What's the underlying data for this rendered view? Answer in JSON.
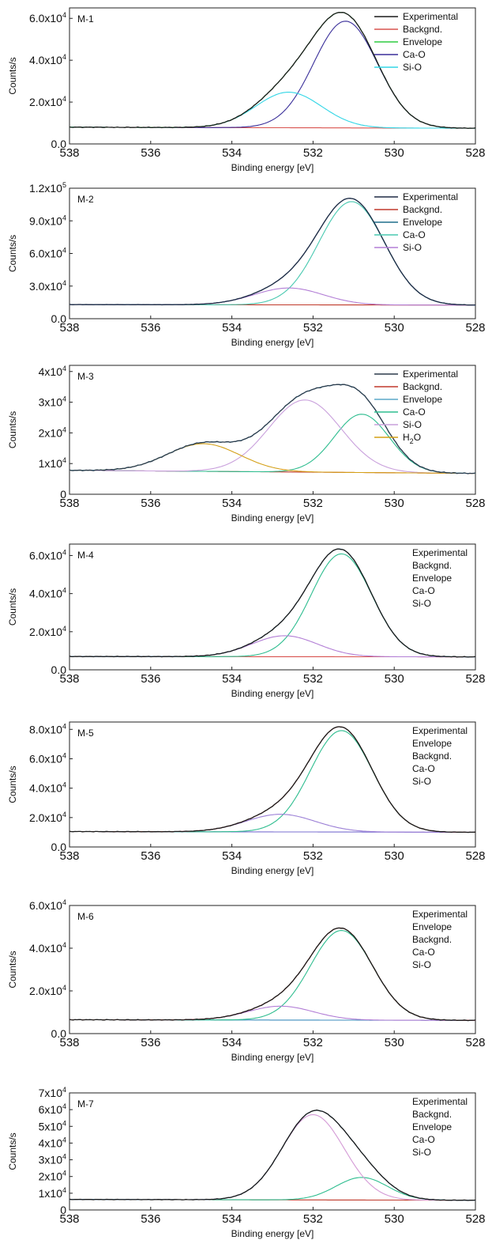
{
  "chart_data": [
    {
      "type": "line",
      "panel_label": "M-1",
      "xlabel": "Binding energy [eV]",
      "ylabel": "Counts/s",
      "xlim": [
        538,
        528
      ],
      "ylim": [
        0,
        65000
      ],
      "x_ticks": [
        538,
        536,
        534,
        532,
        530,
        528
      ],
      "y_ticks": [
        0,
        20000,
        40000,
        60000
      ],
      "y_tick_labels": [
        {
          "mantissa": "0.0",
          "exp": ""
        },
        {
          "mantissa": "2.0x10",
          "exp": "4"
        },
        {
          "mantissa": "4.0x10",
          "exp": "4"
        },
        {
          "mantissa": "6.0x10",
          "exp": "4"
        }
      ],
      "baseline": [
        [
          538,
          8000
        ],
        [
          528,
          7500
        ]
      ],
      "components": [
        {
          "center": 531.2,
          "height": 51000,
          "fwhm": 1.85
        },
        {
          "center": 532.6,
          "height": 17000,
          "fwhm": 1.9
        }
      ],
      "series": [
        {
          "name": "Experimental",
          "role": "experimental",
          "color": "#1a1a1a"
        },
        {
          "name": "Backgnd.",
          "role": "background",
          "color": "#d9534f"
        },
        {
          "name": "Envelope",
          "role": "envelope",
          "color": "#2ecc40"
        },
        {
          "name": "Ca-O",
          "role": "component",
          "index": 0,
          "color": "#3a2f9a"
        },
        {
          "name": "Si-O",
          "role": "component",
          "index": 1,
          "color": "#33d6e6"
        }
      ],
      "legend_show_lines": true,
      "legend_position": "top-right"
    },
    {
      "type": "line",
      "panel_label": "M-2",
      "xlabel": "Binding energy [eV]",
      "ylabel": "Counts/s",
      "xlim": [
        538,
        528
      ],
      "ylim": [
        0,
        120000
      ],
      "x_ticks": [
        538,
        536,
        534,
        532,
        530,
        528
      ],
      "y_ticks": [
        0,
        30000,
        60000,
        90000,
        120000
      ],
      "y_tick_labels": [
        {
          "mantissa": "0.0",
          "exp": ""
        },
        {
          "mantissa": "3.0x10",
          "exp": "4"
        },
        {
          "mantissa": "6.0x10",
          "exp": "4"
        },
        {
          "mantissa": "9.0x10",
          "exp": "4"
        },
        {
          "mantissa": "1.2x10",
          "exp": "5"
        }
      ],
      "baseline": [
        [
          538,
          13000
        ],
        [
          528,
          12500
        ]
      ],
      "components": [
        {
          "center": 531.05,
          "height": 95000,
          "fwhm": 1.9
        },
        {
          "center": 532.6,
          "height": 15500,
          "fwhm": 2.0
        }
      ],
      "series": [
        {
          "name": "Experimental",
          "role": "experimental",
          "color": "#1f2a44"
        },
        {
          "name": "Backgnd.",
          "role": "background",
          "color": "#c0392b"
        },
        {
          "name": "Envelope",
          "role": "envelope",
          "color": "#1f6f8b"
        },
        {
          "name": "Ca-O",
          "role": "component",
          "index": 0,
          "color": "#48c9b0"
        },
        {
          "name": "Si-O",
          "role": "component",
          "index": 1,
          "color": "#b37fd6"
        }
      ],
      "legend_show_lines": true,
      "legend_position": "top-right"
    },
    {
      "type": "line",
      "panel_label": "M-3",
      "xlabel": "Binding energy [eV]",
      "ylabel": "Counts/s",
      "xlim": [
        538,
        528
      ],
      "ylim": [
        0,
        42000
      ],
      "x_ticks": [
        538,
        536,
        534,
        532,
        530,
        528
      ],
      "y_ticks": [
        0,
        10000,
        20000,
        30000,
        40000
      ],
      "y_tick_labels": [
        {
          "mantissa": "0",
          "exp": ""
        },
        {
          "mantissa": "1x10",
          "exp": "4"
        },
        {
          "mantissa": "2x10",
          "exp": "4"
        },
        {
          "mantissa": "3x10",
          "exp": "4"
        },
        {
          "mantissa": "4x10",
          "exp": "4"
        }
      ],
      "baseline": [
        [
          538,
          7800
        ],
        [
          528,
          6800
        ]
      ],
      "components": [
        {
          "center": 530.8,
          "height": 19000,
          "fwhm": 1.6
        },
        {
          "center": 532.2,
          "height": 23500,
          "fwhm": 2.1
        },
        {
          "center": 534.7,
          "height": 9000,
          "fwhm": 2.1
        }
      ],
      "series": [
        {
          "name": "Experimental",
          "role": "experimental",
          "color": "#2b3a4a"
        },
        {
          "name": "Backgnd.",
          "role": "background",
          "color": "#c0392b"
        },
        {
          "name": "Envelope",
          "role": "envelope",
          "color": "#5aa9c9"
        },
        {
          "name": "Ca-O",
          "role": "component",
          "index": 0,
          "color": "#2ebd8f"
        },
        {
          "name": "Si-O",
          "role": "component",
          "index": 1,
          "color": "#c9a0dc"
        },
        {
          "name": "H2O",
          "display": {
            "mantissa": "H",
            "sub": "2",
            "tail": "O"
          },
          "role": "component",
          "index": 2,
          "color": "#d4a017"
        }
      ],
      "legend_show_lines": true,
      "legend_position": "top-right"
    },
    {
      "type": "line",
      "panel_label": "M-4",
      "xlabel": "Binding energy [eV]",
      "ylabel": "Counts/s",
      "xlim": [
        538,
        528
      ],
      "ylim": [
        0,
        66000
      ],
      "x_ticks": [
        538,
        536,
        534,
        532,
        530,
        528
      ],
      "y_ticks": [
        0,
        20000,
        40000,
        60000
      ],
      "y_tick_labels": [
        {
          "mantissa": "0.0",
          "exp": ""
        },
        {
          "mantissa": "2.0x10",
          "exp": "4"
        },
        {
          "mantissa": "4.0x10",
          "exp": "4"
        },
        {
          "mantissa": "6.0x10",
          "exp": "4"
        }
      ],
      "baseline": [
        [
          538,
          7000
        ],
        [
          528,
          6800
        ]
      ],
      "components": [
        {
          "center": 531.3,
          "height": 54000,
          "fwhm": 1.75
        },
        {
          "center": 532.7,
          "height": 11000,
          "fwhm": 1.9
        }
      ],
      "series": [
        {
          "name": "Experimental",
          "role": "experimental",
          "color": "#1a1a1a"
        },
        {
          "name": "Backgnd.",
          "role": "background",
          "color": "#d9534f"
        },
        {
          "name": "Envelope",
          "role": "envelope",
          "color": "#3c8dbc"
        },
        {
          "name": "Ca-O",
          "role": "component",
          "index": 0,
          "color": "#2ebd8f"
        },
        {
          "name": "Si-O",
          "role": "component",
          "index": 1,
          "color": "#b37fd6"
        }
      ],
      "legend_show_lines": false,
      "legend_position": "top-right"
    },
    {
      "type": "line",
      "panel_label": "M-5",
      "xlabel": "Binding energy [eV]",
      "ylabel": "Counts/s",
      "xlim": [
        538,
        528
      ],
      "ylim": [
        0,
        85000
      ],
      "x_ticks": [
        538,
        536,
        534,
        532,
        530,
        528
      ],
      "y_ticks": [
        0,
        20000,
        40000,
        60000,
        80000
      ],
      "y_tick_labels": [
        {
          "mantissa": "0.0",
          "exp": ""
        },
        {
          "mantissa": "2.0x10",
          "exp": "4"
        },
        {
          "mantissa": "4.0x10",
          "exp": "4"
        },
        {
          "mantissa": "6.0x10",
          "exp": "4"
        },
        {
          "mantissa": "8.0x10",
          "exp": "4"
        }
      ],
      "baseline": [
        [
          538,
          10500
        ],
        [
          528,
          10000
        ]
      ],
      "components": [
        {
          "center": 531.3,
          "height": 69000,
          "fwhm": 1.8
        },
        {
          "center": 532.8,
          "height": 12000,
          "fwhm": 2.0
        }
      ],
      "series": [
        {
          "name": "Experimental",
          "role": "experimental",
          "color": "#1a1a1a"
        },
        {
          "name": "Envelope",
          "role": "envelope",
          "color": "#c0392b"
        },
        {
          "name": "Backgnd.",
          "role": "background",
          "color": "#7a6fd0"
        },
        {
          "name": "Ca-O",
          "role": "component",
          "index": 0,
          "color": "#2ebd8f"
        },
        {
          "name": "Si-O",
          "role": "component",
          "index": 1,
          "color": "#9b7fd6"
        }
      ],
      "legend_show_lines": false,
      "legend_position": "top-right"
    },
    {
      "type": "line",
      "panel_label": "M-6",
      "xlabel": "Binding energy [eV]",
      "ylabel": "Counts/s",
      "xlim": [
        538,
        528
      ],
      "ylim": [
        0,
        60000
      ],
      "x_ticks": [
        538,
        536,
        534,
        532,
        530,
        528
      ],
      "y_ticks": [
        0,
        20000,
        40000,
        60000
      ],
      "y_tick_labels": [
        {
          "mantissa": "0.0",
          "exp": ""
        },
        {
          "mantissa": "2.0x10",
          "exp": "4"
        },
        {
          "mantissa": "4.0x10",
          "exp": "4"
        },
        {
          "mantissa": "6.0x10",
          "exp": "4"
        }
      ],
      "baseline": [
        [
          538,
          6500
        ],
        [
          528,
          6200
        ]
      ],
      "components": [
        {
          "center": 531.3,
          "height": 42000,
          "fwhm": 1.8
        },
        {
          "center": 532.8,
          "height": 6500,
          "fwhm": 1.9
        }
      ],
      "series": [
        {
          "name": "Experimental",
          "role": "experimental",
          "color": "#1a1a1a"
        },
        {
          "name": "Envelope",
          "role": "envelope",
          "color": "#c0392b"
        },
        {
          "name": "Backgnd.",
          "role": "background",
          "color": "#3c8dbc"
        },
        {
          "name": "Ca-O",
          "role": "component",
          "index": 0,
          "color": "#2ebd8f"
        },
        {
          "name": "Si-O",
          "role": "component",
          "index": 1,
          "color": "#b37fd6"
        }
      ],
      "legend_show_lines": false,
      "legend_position": "top-right"
    },
    {
      "type": "line",
      "panel_label": "M-7",
      "xlabel": "Binding energy [eV]",
      "ylabel": "Counts/s",
      "xlim": [
        538,
        528
      ],
      "ylim": [
        0,
        70000
      ],
      "x_ticks": [
        538,
        536,
        534,
        532,
        530,
        528
      ],
      "y_ticks": [
        0,
        10000,
        20000,
        30000,
        40000,
        50000,
        60000,
        70000
      ],
      "y_tick_labels": [
        {
          "mantissa": "0",
          "exp": ""
        },
        {
          "mantissa": "1x10",
          "exp": "4"
        },
        {
          "mantissa": "2x10",
          "exp": "4"
        },
        {
          "mantissa": "3x10",
          "exp": "4"
        },
        {
          "mantissa": "4x10",
          "exp": "4"
        },
        {
          "mantissa": "5x10",
          "exp": "4"
        },
        {
          "mantissa": "6x10",
          "exp": "4"
        },
        {
          "mantissa": "7x10",
          "exp": "4"
        }
      ],
      "baseline": [
        [
          538,
          6300
        ],
        [
          528,
          5800
        ]
      ],
      "components": [
        {
          "center": 532.0,
          "height": 51000,
          "fwhm": 1.8
        },
        {
          "center": 530.8,
          "height": 13500,
          "fwhm": 1.5
        }
      ],
      "series": [
        {
          "name": "Experimental",
          "role": "experimental",
          "color": "#1a1a1a"
        },
        {
          "name": "Backgnd.",
          "role": "background",
          "color": "#c0392b"
        },
        {
          "name": "Envelope",
          "role": "envelope",
          "color": "#3c8dbc"
        },
        {
          "name": "Ca-O",
          "role": "component",
          "index": 1,
          "color": "#2ebd8f"
        },
        {
          "name": "Si-O",
          "role": "component",
          "index": 0,
          "color": "#d49ad6"
        }
      ],
      "legend_show_lines": false,
      "legend_position": "top-right"
    }
  ]
}
